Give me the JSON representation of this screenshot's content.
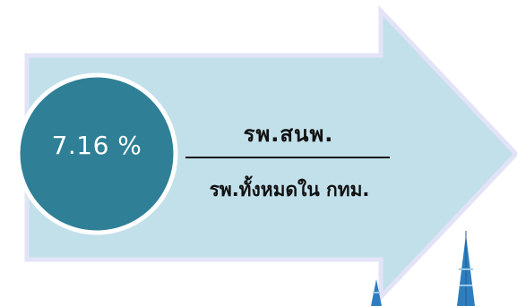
{
  "ratio": {
    "percent": "7.16 %",
    "numerator": "รพ.สนพ.",
    "denominator": "รพ.ทั้งหมดใน กทม."
  },
  "colors": {
    "arrow_fill": "#c2e0ea",
    "arrow_edge": "#e3e3f7",
    "circle_fill": "#2f7f96",
    "circle_border": "#ffffff",
    "spire": "#2e7dbf"
  }
}
